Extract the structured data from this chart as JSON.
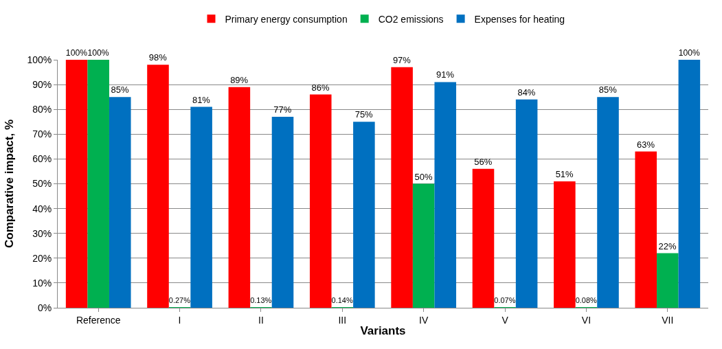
{
  "chart_data": {
    "type": "bar",
    "xlabel": "Variants",
    "ylabel": "Comparative impact, %",
    "categories": [
      "Reference",
      "I",
      "II",
      "III",
      "IV",
      "V",
      "VI",
      "VII"
    ],
    "series": [
      {
        "name": "Primary energy consumption",
        "color": "#ff0000",
        "values": [
          100,
          98,
          89,
          86,
          97,
          56,
          51,
          63
        ],
        "value_labels": [
          "100%",
          "98%",
          "89%",
          "86%",
          "97%",
          "56%",
          "51%",
          "63%"
        ]
      },
      {
        "name": "CO2 emissions",
        "color": "#00b050",
        "values": [
          100,
          0.27,
          0.13,
          0.14,
          50,
          0.07,
          0.08,
          22
        ],
        "value_labels": [
          "100%",
          "0.27%",
          "0.13%",
          "0.14%",
          "50%",
          "0.07%",
          "0.08%",
          "22%"
        ]
      },
      {
        "name": "Expenses for heating",
        "color": "#0070c0",
        "values": [
          85,
          81,
          77,
          75,
          91,
          84,
          85,
          100
        ],
        "value_labels": [
          "85%",
          "81%",
          "77%",
          "75%",
          "91%",
          "84%",
          "85%",
          "100%"
        ]
      }
    ],
    "ylim": [
      0,
      100
    ],
    "yticks": [
      {
        "value": 0,
        "label": "0%"
      },
      {
        "value": 10,
        "label": "10%"
      },
      {
        "value": 20,
        "label": "20%"
      },
      {
        "value": 30,
        "label": "30%"
      },
      {
        "value": 40,
        "label": "40%"
      },
      {
        "value": 50,
        "label": "50%"
      },
      {
        "value": 60,
        "label": "60%"
      },
      {
        "value": 70,
        "label": "70%"
      },
      {
        "value": 80,
        "label": "80%"
      },
      {
        "value": 90,
        "label": "90%"
      },
      {
        "value": 100,
        "label": "100%"
      }
    ],
    "grid": "y",
    "legend": "top"
  }
}
